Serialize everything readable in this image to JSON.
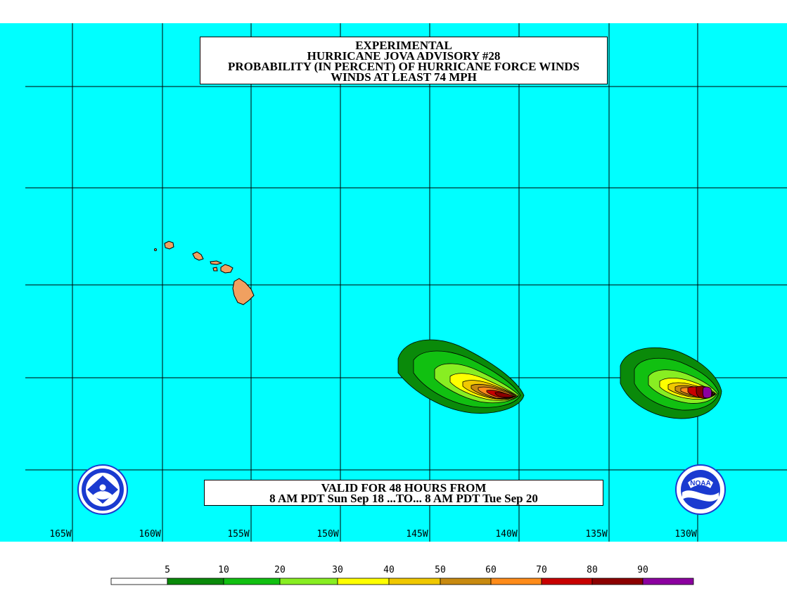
{
  "title": {
    "line1": "EXPERIMENTAL",
    "line2": "HURRICANE JOVA ADVISORY #28",
    "line3": "PROBABILITY (IN PERCENT) OF HURRICANE FORCE WINDS",
    "line4": "WINDS AT LEAST 74 MPH"
  },
  "valid": {
    "line1": "VALID FOR 48 HOURS FROM",
    "line2": "8 AM PDT Sun Sep 18 ...TO... 8 AM PDT Tue Sep 20"
  },
  "longitude_labels": [
    "165W",
    "160W",
    "155W",
    "150W",
    "145W",
    "140W",
    "135W",
    "130W"
  ],
  "legend": {
    "labels": [
      "5",
      "10",
      "20",
      "30",
      "40",
      "50",
      "60",
      "70",
      "80",
      "90"
    ],
    "colors": [
      "#ffffff",
      "#0a8a0a",
      "#11c011",
      "#88ee22",
      "#ffff00",
      "#f0c800",
      "#c88a10",
      "#ff8c1a",
      "#c80000",
      "#8c0000",
      "#8c00a0"
    ]
  },
  "colors": {
    "ocean": "#00ffff",
    "land": "#f0a060",
    "grid": "#000000"
  },
  "logos": {
    "left": "NWS seal",
    "right_text": "NOAA"
  }
}
